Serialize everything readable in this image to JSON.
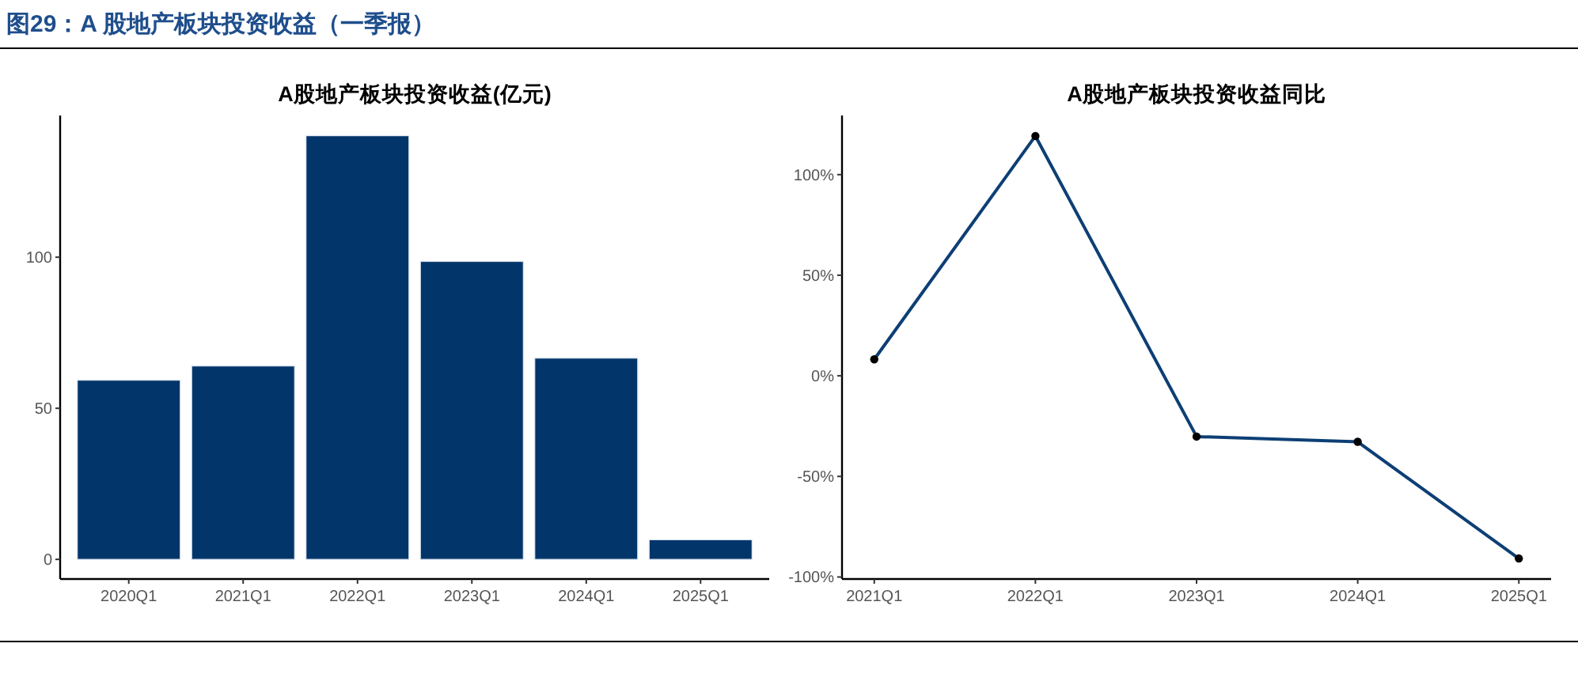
{
  "chart_data": [
    {
      "type": "bar",
      "title": "A股地产板块投资收益(亿元)",
      "annotations": [
        "图29：A 股地产板块投资收益（一季报）"
      ],
      "categories": [
        "2020Q1",
        "2021Q1",
        "2022Q1",
        "2023Q1",
        "2024Q1",
        "2025Q1"
      ],
      "values": [
        59.3,
        64.0,
        140.2,
        98.6,
        66.6,
        6.5
      ],
      "color": "#02356a",
      "ylim": [
        -6.5,
        146.9
      ],
      "yticks": [
        0,
        50,
        100
      ]
    },
    {
      "type": "line",
      "title": "A股地产板块投资收益同比",
      "categories": [
        "2021Q1",
        "2022Q1",
        "2023Q1",
        "2024Q1",
        "2025Q1"
      ],
      "values": [
        8.2,
        119.2,
        -30.2,
        -32.8,
        -90.8
      ],
      "color": "#0d3f75",
      "marker": "circle",
      "ylim": [
        -101,
        129.4
      ],
      "yticks": [
        {
          "value": -100,
          "label": "-100%"
        },
        {
          "value": -50,
          "label": "-50%"
        },
        {
          "value": 0,
          "label": "0%"
        },
        {
          "value": 50,
          "label": "50%"
        },
        {
          "value": 100,
          "label": "100%"
        }
      ]
    }
  ]
}
